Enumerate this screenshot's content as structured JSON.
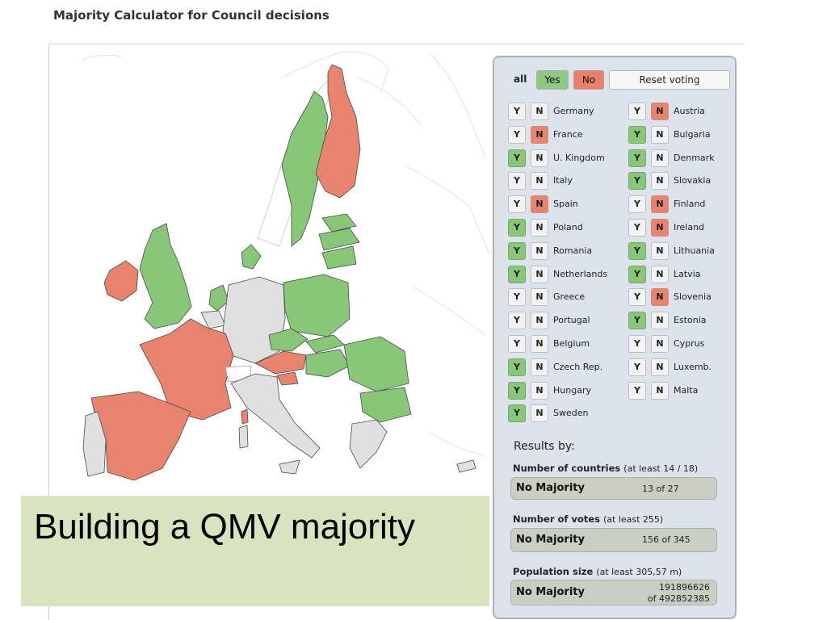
{
  "page": {
    "title": "Majority Calculator for Council decisions"
  },
  "voting": {
    "all_label": "all",
    "yes_label": "Yes",
    "no_label": "No",
    "reset_label": "Reset voting",
    "y_letter": "Y",
    "n_letter": "N"
  },
  "countries": [
    {
      "name": "Germany",
      "vote": "none"
    },
    {
      "name": "France",
      "vote": "no"
    },
    {
      "name": "U. Kingdom",
      "vote": "yes"
    },
    {
      "name": "Italy",
      "vote": "none"
    },
    {
      "name": "Spain",
      "vote": "no"
    },
    {
      "name": "Poland",
      "vote": "yes"
    },
    {
      "name": "Romania",
      "vote": "yes"
    },
    {
      "name": "Netherlands",
      "vote": "yes"
    },
    {
      "name": "Greece",
      "vote": "none"
    },
    {
      "name": "Portugal",
      "vote": "none"
    },
    {
      "name": "Belgium",
      "vote": "none"
    },
    {
      "name": "Czech Rep.",
      "vote": "yes"
    },
    {
      "name": "Hungary",
      "vote": "yes"
    },
    {
      "name": "Sweden",
      "vote": "yes"
    },
    {
      "name": "Austria",
      "vote": "no"
    },
    {
      "name": "Bulgaria",
      "vote": "yes"
    },
    {
      "name": "Denmark",
      "vote": "yes"
    },
    {
      "name": "Slovakia",
      "vote": "yes"
    },
    {
      "name": "Finland",
      "vote": "no"
    },
    {
      "name": "Ireland",
      "vote": "no"
    },
    {
      "name": "Lithuania",
      "vote": "yes"
    },
    {
      "name": "Latvia",
      "vote": "yes"
    },
    {
      "name": "Slovenia",
      "vote": "no"
    },
    {
      "name": "Estonia",
      "vote": "yes"
    },
    {
      "name": "Cyprus",
      "vote": "none"
    },
    {
      "name": "Luxemb.",
      "vote": "none"
    },
    {
      "name": "Malta",
      "vote": "none"
    }
  ],
  "results": {
    "heading": "Results by:",
    "countries": {
      "label": "Number of countries",
      "threshold": "(at least 14 / 18)",
      "status": "No Majority",
      "value": "13 of 27"
    },
    "votes": {
      "label": "Number of votes",
      "threshold": "(at least 255)",
      "status": "No Majority",
      "value": "156 of 345"
    },
    "population": {
      "label": "Population size",
      "threshold": "(at least 305,57 m)",
      "status": "No Majority",
      "value_line1": "191896626",
      "value_line2": "of 492852385"
    }
  },
  "caption": {
    "text": "Building a QMV majority"
  },
  "colors": {
    "yes": "#88c778",
    "no": "#e8846e",
    "neutral": "#e0e0e0"
  }
}
